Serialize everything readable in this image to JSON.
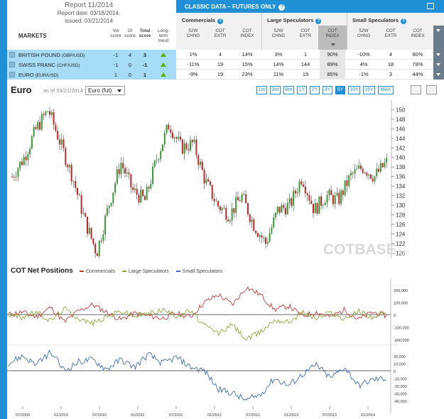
{
  "report": {
    "title": "Report 11/2014",
    "date": "Report date: 03/18/2014,",
    "issued": "issued: 03/21/2014"
  },
  "table": {
    "markets_header": "MARKETS",
    "col_vol": "Vol score",
    "col_oi": "OI score",
    "col_total": "Total score",
    "col_trend": "Long-term trend",
    "classic_title": "CLASSIC DATA – FUTURES ONLY",
    "groups": [
      "Commercials",
      "Large Speculators",
      "Small Speculators"
    ],
    "subcols": [
      "52W CHNG",
      "COT EXTR",
      "COT INDEX"
    ],
    "rows": [
      {
        "name": "BRITISH POUND",
        "code": "(GBP/USD)",
        "vol": "-1",
        "oi": "4",
        "total": "3",
        "c": [
          "1%",
          "4",
          "14%"
        ],
        "l": [
          "3%",
          "1",
          "90%"
        ],
        "s": [
          "-10%",
          "4",
          "80%"
        ]
      },
      {
        "name": "SWISS FRANC",
        "code": "(CHF/USD)",
        "vol": "-1",
        "oi": "0",
        "total": "-1",
        "c": [
          "-11%",
          "19",
          "15%"
        ],
        "l": [
          "14%",
          "144",
          "89%"
        ],
        "s": [
          "4%",
          "18",
          "78%"
        ]
      },
      {
        "name": "EURO",
        "code": "(EUR/USD)",
        "vol": "1",
        "oi": "0",
        "total": "1",
        "c": [
          "-9%",
          "19",
          "23%"
        ],
        "l": [
          "11%",
          "19",
          "85%"
        ],
        "s": [
          "-1%",
          "3",
          "44%"
        ]
      }
    ]
  },
  "chart_header": {
    "title": "Euro",
    "asof": "as of 03/21/2014",
    "select": "Euro (fut)",
    "ranges": [
      "1m",
      "3m",
      "6m",
      "1Y",
      "2Y",
      "3Y",
      "5Y",
      "10Y",
      "15Y",
      "MAX"
    ],
    "active_range": "5Y"
  },
  "watermark": {
    "cot": "COT",
    "base": "BASE",
    "com": ".com"
  },
  "cot_panel": {
    "title": "COT Net Positions",
    "legend": [
      "Commercials",
      "Large Speculators",
      "Small Speculators"
    ]
  },
  "colors": {
    "accent": "#1f8fd6",
    "commercials": "#c23a3a",
    "large": "#8aa83a",
    "small": "#3d6ab2",
    "candle_up": "#2e9a2e",
    "candle_down": "#c02020"
  },
  "chart_data": [
    {
      "type": "line",
      "title": "Euro",
      "x": [
        "2009-05",
        "2009-07",
        "2009-10",
        "2009-12",
        "2010-01",
        "2010-03",
        "2010-05",
        "2010-06",
        "2010-08",
        "2010-10",
        "2010-11",
        "2011-01",
        "2011-03",
        "2011-05",
        "2011-06",
        "2011-08",
        "2011-10",
        "2011-12",
        "2012-01",
        "2012-03",
        "2012-05",
        "2012-07",
        "2012-09",
        "2012-11",
        "2013-02",
        "2013-04",
        "2013-06",
        "2013-08",
        "2013-10",
        "2013-12",
        "2014-02",
        "2014-03"
      ],
      "series": [
        {
          "values": [
            136,
            140,
            146,
            150,
            143,
            136,
            127,
            120,
            130,
            139,
            133,
            131,
            140,
            147,
            142,
            143,
            135,
            130,
            128,
            132,
            126,
            122,
            129,
            130,
            136,
            129,
            132,
            131,
            136,
            138,
            136,
            139
          ]
        }
      ],
      "ylim": [
        119,
        152
      ],
      "yticks": [
        120,
        122,
        124,
        126,
        128,
        130,
        132,
        134,
        136,
        138,
        140,
        142,
        144,
        146,
        148,
        150
      ],
      "xticks": [
        "07/2009",
        "01/2010",
        "07/2010",
        "01/2011",
        "07/2011",
        "01/2012",
        "07/2012",
        "01/2013",
        "07/2013",
        "01/2014"
      ]
    },
    {
      "type": "line",
      "title": "COT Net Positions",
      "series": [
        {
          "name": "Commercials",
          "values": [
            0,
            20000,
            -20000,
            60000,
            -60000,
            30000,
            80000,
            20000,
            -40000,
            10000,
            -10000,
            -30000,
            10000,
            -20000,
            100000,
            160000,
            80000,
            220000,
            160000,
            40000,
            70000,
            -10000,
            20000,
            -20000,
            40000,
            -40000,
            20000,
            -10000
          ]
        },
        {
          "name": "Large Speculators",
          "values": [
            0,
            -20000,
            20000,
            -50000,
            50000,
            -30000,
            -70000,
            -20000,
            30000,
            -10000,
            10000,
            40000,
            -10000,
            30000,
            -90000,
            -150000,
            -80000,
            -200000,
            -140000,
            -40000,
            -60000,
            20000,
            -30000,
            20000,
            -40000,
            30000,
            -20000,
            10000
          ]
        },
        {
          "name": "Small Speculators",
          "values": [
            10000,
            20000,
            8000,
            25000,
            0,
            12000,
            15000,
            2000,
            15000,
            5000,
            22000,
            10000,
            18000,
            5000,
            0,
            -25000,
            -30000,
            -40000,
            -32000,
            -10000,
            -20000,
            -5000,
            8000,
            -10000,
            5000,
            -20000,
            -12000,
            -10000
          ]
        }
      ],
      "yticks_top": [
        "200,000",
        "100,000",
        "0",
        "-100,000",
        "-200,000"
      ],
      "yticks_bottom": [
        "20,000",
        "10,000",
        "0",
        "-10,000",
        "-20,000",
        "-30,000",
        "-40,000"
      ],
      "xticks": [
        "07/2009",
        "01/2010",
        "07/2010",
        "01/2011",
        "07/2011",
        "01/2012",
        "07/2012",
        "01/2013",
        "07/2013",
        "01/2014"
      ]
    }
  ]
}
